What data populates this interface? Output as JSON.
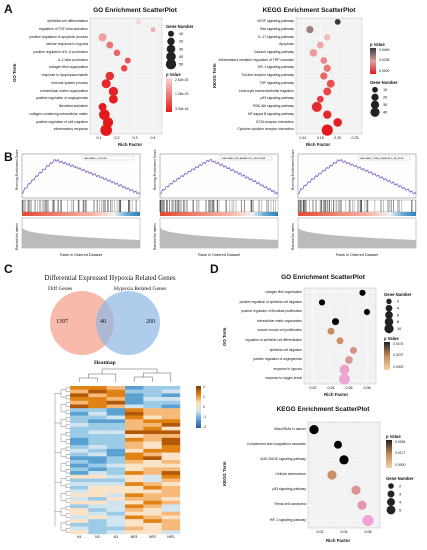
{
  "panels": {
    "A_label": "A",
    "B_label": "B",
    "C_label": "C",
    "D_label": "D"
  },
  "colors": {
    "low_p": "#e31a1c",
    "high_p": "#f6d5d5",
    "venn_left": "#f6a48f",
    "venn_right": "#8fb6e6",
    "gsea_line": "#7b5bc0",
    "gsea_bar_red": "#e34a33",
    "gsea_bar_blue": "#2c7fb8"
  },
  "go_a": {
    "title": "GO Enrichment ScatterPlot",
    "y_title": "GO Term",
    "x_title": "Rich Factor",
    "size_legend_title": "Gene Number",
    "size_legend": [
      "10",
      "20",
      "30",
      "40",
      "50"
    ],
    "color_legend_title": "p Value",
    "color_legend": [
      "2.52e-03",
      "1.26e-03",
      "3.33e-16"
    ],
    "chart_data": {
      "type": "scatter",
      "x_ticks": [
        "0.1",
        "0.2",
        "0.3",
        "0.4"
      ],
      "xlim": [
        0.05,
        0.45
      ],
      "terms": [
        {
          "term": "epithelial cell differentiation",
          "x": 0.32,
          "size": 5,
          "p": 0.0025
        },
        {
          "term": "regulation of TGF beta activation",
          "x": 0.4,
          "size": 4,
          "p": 0.002
        },
        {
          "term": "positive regulation of apoptotic process",
          "x": 0.12,
          "size": 20,
          "p": 0.0018
        },
        {
          "term": "cellular response to hypoxia",
          "x": 0.16,
          "size": 12,
          "p": 0.0012
        },
        {
          "term": "positive regulation of IL-6 production",
          "x": 0.2,
          "size": 10,
          "p": 0.001
        },
        {
          "term": "IL-1 beta production",
          "x": 0.26,
          "size": 8,
          "p": 0.0008
        },
        {
          "term": "collagen fibril organization",
          "x": 0.24,
          "size": 10,
          "p": 0.0006
        },
        {
          "term": "response to lipopolysaccharide",
          "x": 0.16,
          "size": 22,
          "p": 0.0003
        },
        {
          "term": "immune system process",
          "x": 0.14,
          "size": 26,
          "p": 0.0002
        },
        {
          "term": "extracellular matrix organization",
          "x": 0.18,
          "size": 28,
          "p": 0.0001
        },
        {
          "term": "positive regulation of angiogenesis",
          "x": 0.18,
          "size": 24,
          "p": 5e-05
        },
        {
          "term": "fibroblast activation",
          "x": 0.12,
          "size": 18,
          "p": 2e-05
        },
        {
          "term": "collagen-containing extracellular matrix",
          "x": 0.13,
          "size": 40,
          "p": 1e-07
        },
        {
          "term": "positive regulation of cell migration",
          "x": 0.15,
          "size": 36,
          "p": 1e-08
        },
        {
          "term": "inflammatory response",
          "x": 0.14,
          "size": 50,
          "p": 1e-10
        }
      ]
    }
  },
  "kegg_a": {
    "title": "KEGG Enrichment ScatterPlot",
    "y_title": "KEGG Term",
    "x_title": "Rich Factor",
    "color_legend_title": "p Value",
    "color_legend": [
      "0.0469",
      "0.0235",
      "0.0000"
    ],
    "size_legend_title": "Gene Number",
    "size_legend": [
      "10",
      "20",
      "30",
      "40"
    ],
    "chart_data": {
      "type": "scatter",
      "x_ticks": [
        "0.10",
        "0.15",
        "0.20",
        "0.25"
      ],
      "xlim": [
        0.08,
        0.27
      ],
      "terms": [
        {
          "term": "VEGF signaling pathway",
          "x": 0.2,
          "size": 6,
          "p": 0.046
        },
        {
          "term": "Ras signaling pathway",
          "x": 0.12,
          "size": 12,
          "p": 0.04
        },
        {
          "term": "IL-17 signaling pathway",
          "x": 0.17,
          "size": 8,
          "p": 0.035
        },
        {
          "term": "Apoptosis",
          "x": 0.15,
          "size": 10,
          "p": 0.03
        },
        {
          "term": "Calcium signaling pathway",
          "x": 0.13,
          "size": 14,
          "p": 0.028
        },
        {
          "term": "Inflammatory mediator regulation of TRP channels",
          "x": 0.16,
          "size": 10,
          "p": 0.024
        },
        {
          "term": "HIF-1 signaling pathway",
          "x": 0.17,
          "size": 12,
          "p": 0.02
        },
        {
          "term": "Toll-like receptor signaling pathway",
          "x": 0.16,
          "size": 12,
          "p": 0.016
        },
        {
          "term": "TNF signaling pathway",
          "x": 0.18,
          "size": 16,
          "p": 0.012
        },
        {
          "term": "Leukocyte transendothelial migration",
          "x": 0.17,
          "size": 16,
          "p": 0.01
        },
        {
          "term": "p53 signaling pathway",
          "x": 0.15,
          "size": 10,
          "p": 0.008
        },
        {
          "term": "PI3K-Akt signaling pathway",
          "x": 0.14,
          "size": 30,
          "p": 0.004
        },
        {
          "term": "NF-kappa B signaling pathway",
          "x": 0.17,
          "size": 18,
          "p": 0.003
        },
        {
          "term": "ECM-receptor interaction",
          "x": 0.2,
          "size": 20,
          "p": 0.001
        },
        {
          "term": "Cytokine-cytokine receptor interaction",
          "x": 0.17,
          "size": 40,
          "p": 0.0001
        }
      ]
    }
  },
  "gsea": {
    "y_top": "Running Enrichment Score",
    "y_bottom": "Ranked list metric",
    "x_title": "Rank in Ordered Dataset",
    "plots": [
      {
        "name": "",
        "label": "HALLMARK_HYPOXIA"
      },
      {
        "name": "",
        "label": "HALLMARK_INFLAMMATORY_RESPONSE"
      },
      {
        "name": "",
        "label": "HALLMARK_TNFA_SIGNALING_VIA_NFKB"
      }
    ]
  },
  "venn": {
    "title": "Differential Expressed Hypoxia Related Genes",
    "left_label": "Diff Genes",
    "right_label": "Hypoxia Related Genes",
    "left_only": "1397",
    "overlap": "40",
    "right_only": "200"
  },
  "heatmap": {
    "title": "Heatmap",
    "columns": [
      "N1",
      "N2",
      "N3",
      "NR1",
      "NR2",
      "NR3"
    ],
    "scale": [
      "2",
      "1",
      "0",
      "-1",
      "-2"
    ],
    "rows": 40
  },
  "go_d": {
    "title": "GO Enrichment ScatterPlot",
    "y_title": "GO Term",
    "x_title": "Rich Factor",
    "size_legend_title": "Gene Number",
    "size_legend": [
      "2",
      "4",
      "6",
      "8",
      "10"
    ],
    "color_legend_title": "p Value",
    "color_legend": [
      "0.0474",
      "0.0237",
      "0.0000"
    ],
    "chart_data": {
      "type": "scatter",
      "x_ticks": [
        "0.02",
        "0.04",
        "0.06",
        "0.08"
      ],
      "xlim": [
        0.01,
        0.09
      ],
      "terms": [
        {
          "term": "collagen fibril organization",
          "x": 0.075,
          "size": 2,
          "p": 0.045
        },
        {
          "term": "positive regulation of epithelial cell migration",
          "x": 0.03,
          "size": 2,
          "p": 0.04
        },
        {
          "term": "positive regulation of fibroblast proliferation",
          "x": 0.08,
          "size": 2,
          "p": 0.035
        },
        {
          "term": "extracellular matrix organization",
          "x": 0.045,
          "size": 3,
          "p": 0.03
        },
        {
          "term": "smooth muscle cell proliferation",
          "x": 0.04,
          "size": 3,
          "p": 0.026
        },
        {
          "term": "regulation of epithelial cell differentiation",
          "x": 0.05,
          "size": 3,
          "p": 0.022
        },
        {
          "term": "epithelial cell migration",
          "x": 0.065,
          "size": 3,
          "p": 0.018
        },
        {
          "term": "positive regulation of angiogenesis",
          "x": 0.06,
          "size": 4,
          "p": 0.014
        },
        {
          "term": "response to hypoxia",
          "x": 0.055,
          "size": 8,
          "p": 0.003
        },
        {
          "term": "response to oxygen levels",
          "x": 0.055,
          "size": 10,
          "p": 0.001
        }
      ]
    }
  },
  "kegg_d": {
    "title": "KEGG Enrichment ScatterPlot",
    "y_title": "KEGG Term",
    "x_title": "Rich Factor",
    "color_legend_title": "p Value",
    "color_legend": [
      "0.0354",
      "0.0177",
      "0.0000"
    ],
    "size_legend_title": "Gene Number",
    "size_legend": [
      "2",
      "3",
      "4",
      "5"
    ],
    "chart_data": {
      "type": "scatter",
      "x_ticks": [
        "0.02",
        "0.04",
        "0.06"
      ],
      "xlim": [
        0.01,
        0.07
      ],
      "terms": [
        {
          "term": "MicroRNAs in cancer",
          "x": 0.015,
          "size": 3,
          "p": 0.034
        },
        {
          "term": "Complement and coagulation cascades",
          "x": 0.035,
          "size": 2,
          "p": 0.028
        },
        {
          "term": "AGE-RAGE signaling pathway",
          "x": 0.04,
          "size": 3,
          "p": 0.022
        },
        {
          "term": "Cellular senescence",
          "x": 0.03,
          "size": 3,
          "p": 0.018
        },
        {
          "term": "p53 signaling pathway",
          "x": 0.05,
          "size": 3,
          "p": 0.012
        },
        {
          "term": "Renal cell carcinoma",
          "x": 0.055,
          "size": 3,
          "p": 0.008
        },
        {
          "term": "HIF-1 signaling pathway",
          "x": 0.06,
          "size": 5,
          "p": 0.001
        }
      ]
    }
  }
}
